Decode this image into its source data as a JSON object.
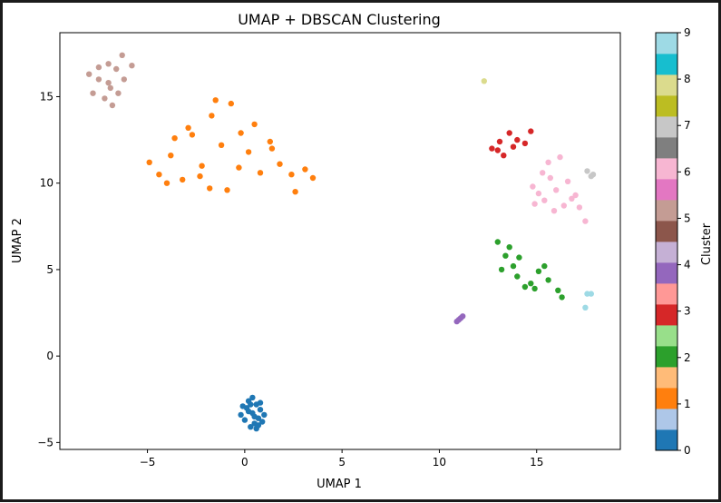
{
  "chart_data": {
    "type": "scatter",
    "title": "UMAP + DBSCAN Clustering",
    "xlabel": "UMAP 1",
    "ylabel": "UMAP 2",
    "xlim": [
      -9.5,
      19.3
    ],
    "ylim": [
      -5.4,
      18.7
    ],
    "x_ticks": [
      -5,
      0,
      5,
      10,
      15
    ],
    "y_ticks": [
      -5,
      0,
      5,
      10,
      15
    ],
    "grid": false,
    "legend": "none",
    "colorbar": {
      "label": "Cluster",
      "range": [
        0,
        9
      ],
      "ticks": [
        0,
        1,
        2,
        3,
        4,
        5,
        6,
        7,
        8,
        9
      ],
      "colors": [
        "#1f77b4",
        "#aec7e8",
        "#ff7f0e",
        "#ffbb78",
        "#2ca02c",
        "#98df8a",
        "#d62728",
        "#ff9896",
        "#9467bd",
        "#c5b0d5",
        "#8c564b",
        "#c49c94",
        "#e377c2",
        "#f7b6d2",
        "#7f7f7f",
        "#c7c7c7",
        "#bcbd22",
        "#dbdb8d",
        "#17becf",
        "#9edae5"
      ]
    },
    "series": [
      {
        "cluster": 0,
        "color": "#1f77b4",
        "points": [
          [
            0.1,
            -3.0
          ],
          [
            0.4,
            -3.3
          ],
          [
            0.7,
            -3.6
          ],
          [
            0.2,
            -2.6
          ],
          [
            0.5,
            -3.9
          ],
          [
            0.8,
            -3.1
          ],
          [
            -0.2,
            -3.4
          ],
          [
            0.3,
            -4.1
          ],
          [
            0.6,
            -2.8
          ],
          [
            0.9,
            -3.8
          ],
          [
            0.0,
            -3.7
          ],
          [
            0.4,
            -2.4
          ],
          [
            1.0,
            -3.4
          ],
          [
            0.2,
            -3.2
          ],
          [
            0.6,
            -4.2
          ],
          [
            0.8,
            -2.7
          ],
          [
            -0.1,
            -2.9
          ],
          [
            0.5,
            -3.5
          ],
          [
            0.3,
            -2.8
          ],
          [
            0.7,
            -4.0
          ]
        ]
      },
      {
        "cluster": 1,
        "color": "#ff7f0e",
        "points": [
          [
            -4.9,
            11.2
          ],
          [
            -4.4,
            10.5
          ],
          [
            -3.8,
            11.6
          ],
          [
            -3.2,
            10.2
          ],
          [
            -2.7,
            12.8
          ],
          [
            -2.2,
            11.0
          ],
          [
            -1.7,
            13.9
          ],
          [
            -1.2,
            12.2
          ],
          [
            -0.7,
            14.6
          ],
          [
            -0.3,
            10.9
          ],
          [
            0.2,
            11.8
          ],
          [
            0.8,
            10.6
          ],
          [
            1.3,
            12.4
          ],
          [
            1.8,
            11.1
          ],
          [
            2.4,
            10.5
          ],
          [
            3.1,
            10.8
          ],
          [
            3.5,
            10.3
          ],
          [
            -1.8,
            9.7
          ],
          [
            -0.9,
            9.6
          ],
          [
            -3.6,
            12.6
          ],
          [
            -2.9,
            13.2
          ],
          [
            -1.5,
            14.8
          ],
          [
            0.5,
            13.4
          ],
          [
            -2.3,
            10.4
          ],
          [
            1.4,
            12.0
          ],
          [
            -4.0,
            10.0
          ],
          [
            2.6,
            9.5
          ],
          [
            -0.2,
            12.9
          ]
        ]
      },
      {
        "cluster": 2,
        "color": "#2ca02c",
        "points": [
          [
            13.0,
            6.6
          ],
          [
            13.6,
            6.3
          ],
          [
            13.4,
            5.8
          ],
          [
            14.1,
            5.7
          ],
          [
            13.2,
            5.0
          ],
          [
            14.0,
            4.6
          ],
          [
            14.7,
            4.2
          ],
          [
            15.1,
            4.9
          ],
          [
            15.6,
            4.4
          ],
          [
            16.1,
            3.8
          ],
          [
            14.4,
            4.0
          ],
          [
            13.8,
            5.2
          ],
          [
            15.4,
            5.2
          ],
          [
            14.9,
            3.9
          ],
          [
            16.3,
            3.4
          ]
        ]
      },
      {
        "cluster": 3,
        "color": "#d62728",
        "points": [
          [
            12.7,
            12.0
          ],
          [
            13.1,
            12.4
          ],
          [
            13.3,
            11.6
          ],
          [
            13.6,
            12.9
          ],
          [
            14.0,
            12.5
          ],
          [
            14.4,
            12.3
          ],
          [
            14.7,
            13.0
          ],
          [
            13.0,
            11.9
          ],
          [
            13.8,
            12.1
          ]
        ]
      },
      {
        "cluster": 4,
        "color": "#9467bd",
        "points": [
          [
            10.9,
            2.0
          ],
          [
            11.0,
            2.1
          ],
          [
            11.1,
            2.2
          ],
          [
            11.2,
            2.3
          ]
        ]
      },
      {
        "cluster": 5,
        "color": "#c49c94",
        "points": [
          [
            -8.0,
            16.3
          ],
          [
            -7.5,
            16.0
          ],
          [
            -7.0,
            15.8
          ],
          [
            -6.6,
            16.6
          ],
          [
            -6.3,
            17.4
          ],
          [
            -7.8,
            15.2
          ],
          [
            -7.2,
            14.9
          ],
          [
            -6.8,
            14.5
          ],
          [
            -6.5,
            15.2
          ],
          [
            -7.0,
            16.9
          ],
          [
            -5.8,
            16.8
          ],
          [
            -7.5,
            16.7
          ],
          [
            -6.2,
            16.0
          ],
          [
            -6.9,
            15.5
          ]
        ]
      },
      {
        "cluster": 6,
        "color": "#f7b6d2",
        "points": [
          [
            14.8,
            9.8
          ],
          [
            15.1,
            9.4
          ],
          [
            15.4,
            9.0
          ],
          [
            15.7,
            10.3
          ],
          [
            16.0,
            9.6
          ],
          [
            16.4,
            8.7
          ],
          [
            16.8,
            9.1
          ],
          [
            17.2,
            8.6
          ],
          [
            17.5,
            7.8
          ],
          [
            15.3,
            10.6
          ],
          [
            15.6,
            11.2
          ],
          [
            16.2,
            11.5
          ],
          [
            17.0,
            9.3
          ],
          [
            14.9,
            8.8
          ],
          [
            15.9,
            8.4
          ],
          [
            16.6,
            10.1
          ]
        ]
      },
      {
        "cluster": 7,
        "color": "#c7c7c7",
        "points": [
          [
            17.6,
            10.7
          ],
          [
            17.8,
            10.4
          ],
          [
            17.9,
            10.5
          ]
        ]
      },
      {
        "cluster": 8,
        "color": "#dbdb8d",
        "points": [
          [
            12.3,
            15.9
          ]
        ]
      },
      {
        "cluster": 9,
        "color": "#9edae5",
        "points": [
          [
            17.5,
            2.8
          ],
          [
            17.6,
            3.6
          ],
          [
            17.8,
            3.6
          ]
        ]
      }
    ]
  }
}
